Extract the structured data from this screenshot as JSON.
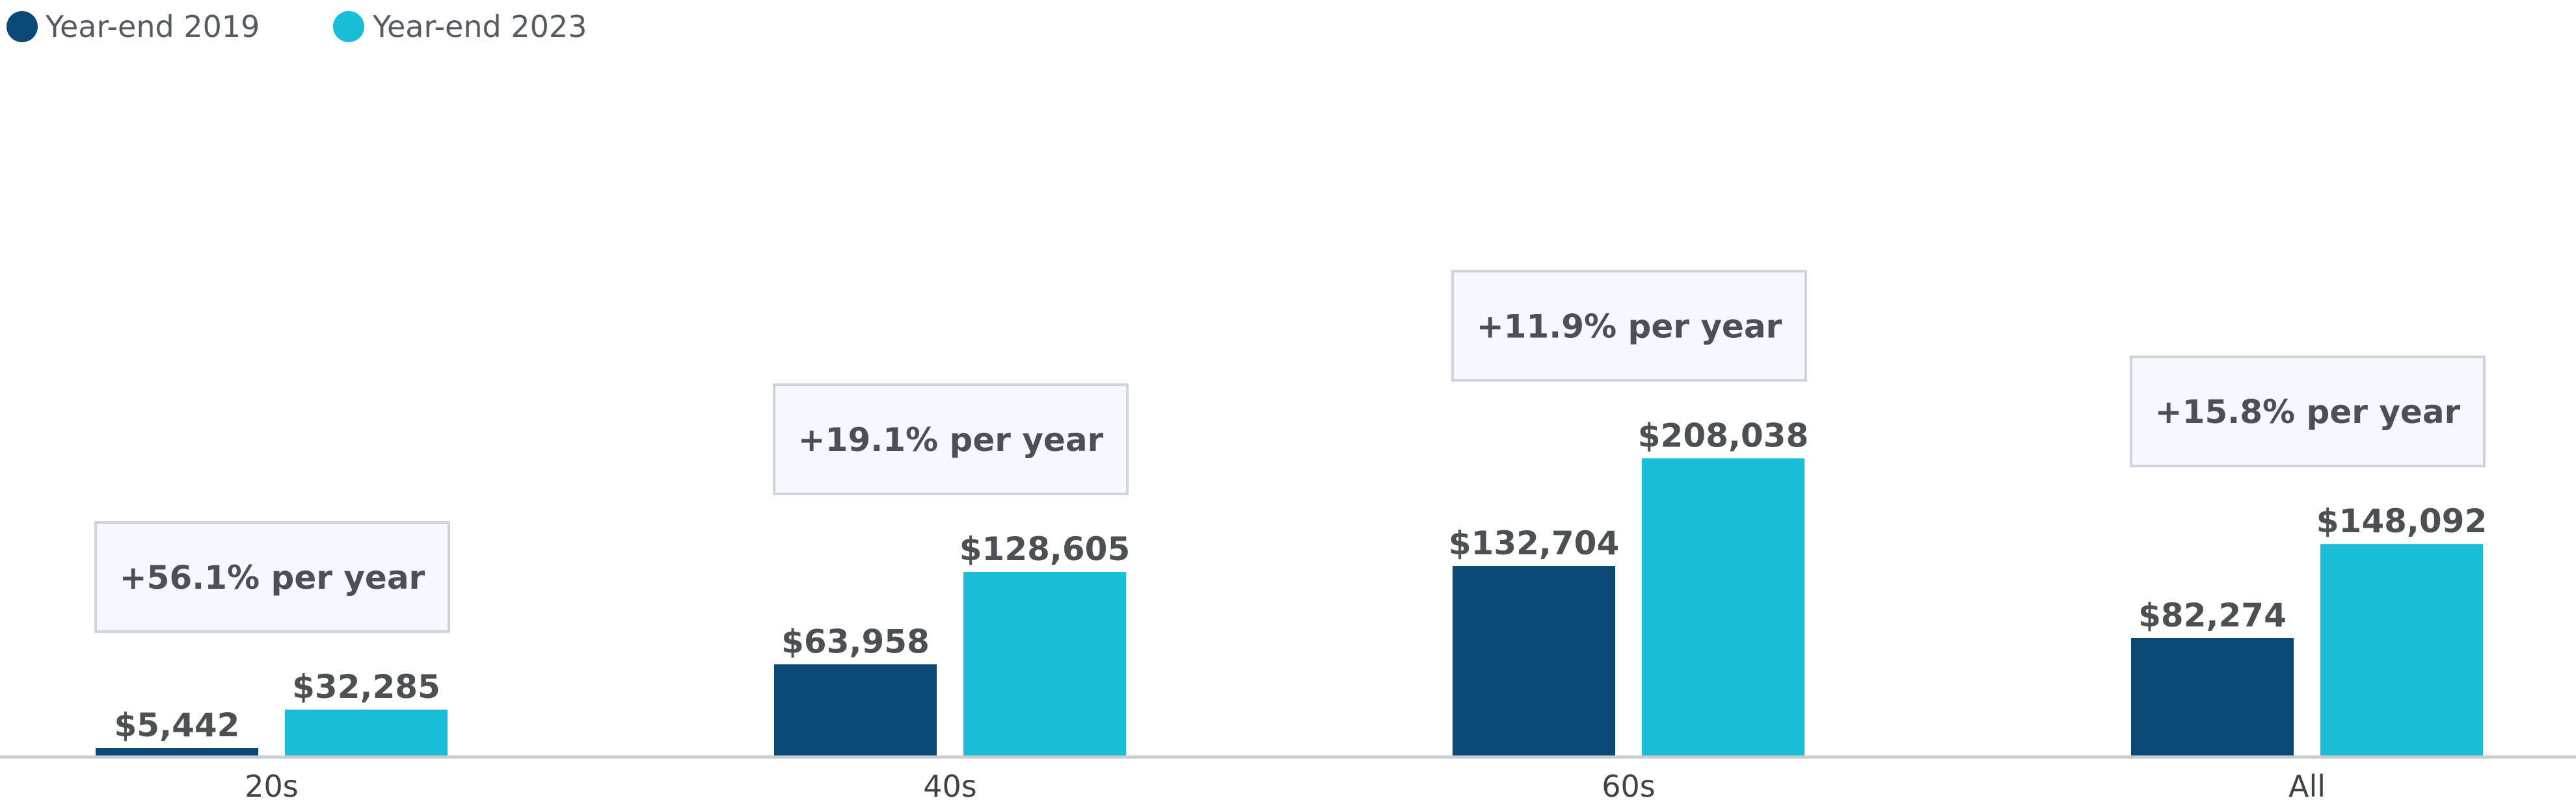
{
  "chart_data": {
    "type": "bar",
    "categories": [
      "20s",
      "40s",
      "60s",
      "All"
    ],
    "series": [
      {
        "name": "Year-end 2019",
        "color": "#0a4877",
        "values": [
          5442,
          63958,
          132704,
          82274
        ],
        "labels": [
          "$5,442",
          "$63,958",
          "$132,704",
          "$82,274"
        ]
      },
      {
        "name": "Year-end 2023",
        "color": "#19bdd7",
        "values": [
          32285,
          128605,
          208038,
          148092
        ],
        "labels": [
          "$32,285",
          "$128,605",
          "$208,038",
          "$148,092"
        ]
      }
    ],
    "annotations": [
      "+56.1% per year",
      "+19.1% per year",
      "+11.9% per year",
      "+15.8% per year"
    ],
    "ylim": [
      0,
      250000
    ],
    "grid": false,
    "legend": "top-left"
  }
}
